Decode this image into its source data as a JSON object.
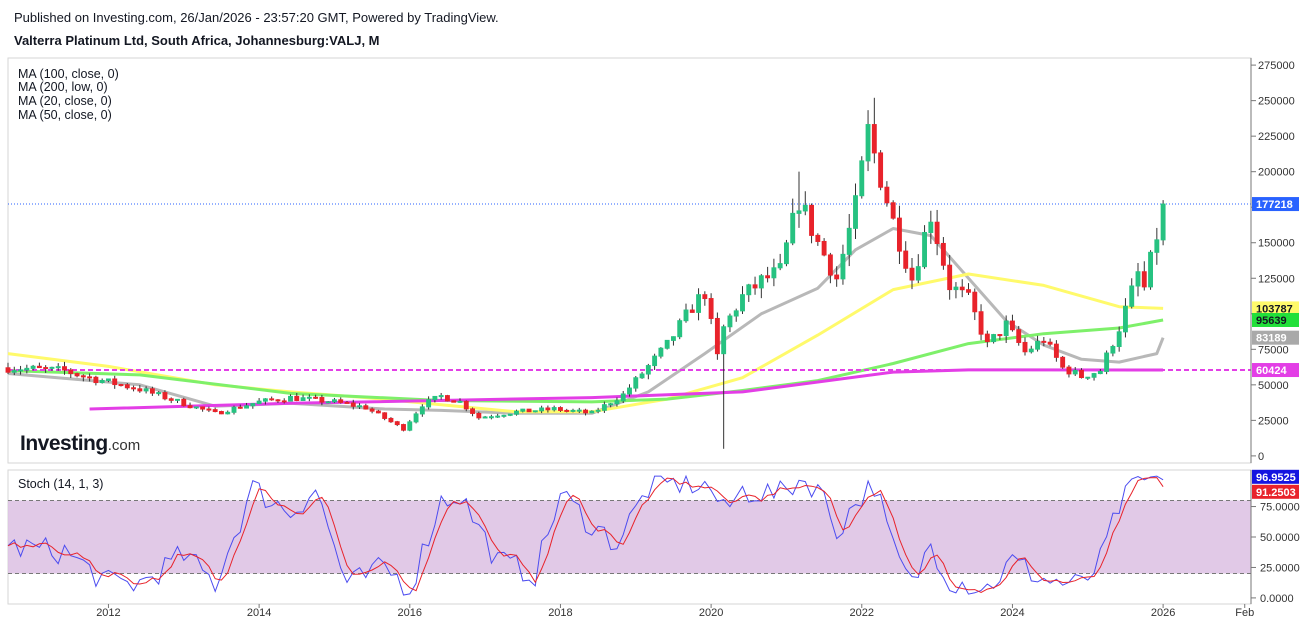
{
  "header": {
    "publish_line": "Published on Investing.com, 26/Jan/2026 - 23:57:20 GMT, Powered by TradingView.",
    "title": "Valterra Platinum Ltd, South Africa, Johannesburg:VALJ, M"
  },
  "legend": {
    "ma_100": "MA (100, close, 0)",
    "ma_200": "MA (200, low, 0)",
    "ma_20": "MA (20, close, 0)",
    "ma_50": "MA (50, close, 0)"
  },
  "logo": {
    "brand": "Investing",
    "suffix": ".com"
  },
  "stoch_label": "Stoch (14, 1, 3)",
  "colors": {
    "up": "#26c281",
    "down": "#e8232b",
    "ma20": "#b8b8b8",
    "ma50": "#fffa6b",
    "ma100": "#7ef06a",
    "ma200": "#e33ee6",
    "stoch_k": "#4c4cf0",
    "stoch_d": "#e8232b",
    "stoch_band": "#dcbfe3"
  },
  "chart_data": [
    {
      "type": "candlestick",
      "name": "price",
      "interval": "M",
      "y_ticks": [
        0,
        25000,
        50000,
        75000,
        100000,
        125000,
        150000,
        175000,
        200000,
        225000,
        250000,
        275000
      ],
      "ylim": [
        -5000,
        280000
      ],
      "x_ticks": [
        "2012",
        "2014",
        "2016",
        "2018",
        "2020",
        "2022",
        "2024",
        "2026",
        "Feb"
      ],
      "xlim": [
        "2010-09",
        "2027-03"
      ],
      "last_price": "177218",
      "price_labels": {
        "ma50": "103787",
        "ma100": "95639",
        "ma20": "83189",
        "ma200": "60424"
      },
      "anchors_close": [
        [
          "2010-09",
          62000
        ],
        [
          "2011-06",
          60000
        ],
        [
          "2011-09",
          56000
        ],
        [
          "2012-06",
          47000
        ],
        [
          "2013-03",
          34000
        ],
        [
          "2013-06",
          30000
        ],
        [
          "2014-01",
          38000
        ],
        [
          "2014-06",
          41000
        ],
        [
          "2015-01",
          38000
        ],
        [
          "2015-06",
          34000
        ],
        [
          "2015-12",
          19000
        ],
        [
          "2016-03",
          36000
        ],
        [
          "2016-06",
          42000
        ],
        [
          "2016-09",
          38000
        ],
        [
          "2016-12",
          27000
        ],
        [
          "2017-06",
          31000
        ],
        [
          "2017-12",
          33000
        ],
        [
          "2018-06",
          30000
        ],
        [
          "2018-11",
          43000
        ],
        [
          "2019-06",
          78000
        ],
        [
          "2019-10",
          105000
        ],
        [
          "2019-12",
          115000
        ],
        [
          "2020-02",
          70000
        ],
        [
          "2020-03",
          90000
        ],
        [
          "2020-06",
          112000
        ],
        [
          "2020-09",
          123000
        ],
        [
          "2020-12",
          130000
        ],
        [
          "2021-03",
          180000
        ],
        [
          "2021-04",
          170000
        ],
        [
          "2021-06",
          150000
        ],
        [
          "2021-09",
          125000
        ],
        [
          "2021-12",
          175000
        ],
        [
          "2022-02",
          228000
        ],
        [
          "2022-06",
          165000
        ],
        [
          "2022-09",
          125000
        ],
        [
          "2022-12",
          170000
        ],
        [
          "2023-03",
          120000
        ],
        [
          "2023-06",
          110000
        ],
        [
          "2023-09",
          78000
        ],
        [
          "2023-12",
          92000
        ],
        [
          "2024-03",
          73000
        ],
        [
          "2024-06",
          82000
        ],
        [
          "2024-09",
          62000
        ],
        [
          "2024-12",
          56000
        ],
        [
          "2025-03",
          60000
        ],
        [
          "2025-06",
          90000
        ],
        [
          "2025-09",
          128000
        ],
        [
          "2025-10",
          118000
        ],
        [
          "2025-12",
          155000
        ],
        [
          "2026-01",
          177218
        ]
      ],
      "ma_series": [
        {
          "key": "ma20",
          "points": [
            [
              "2010-09",
              58000
            ],
            [
              "2012-06",
              50000
            ],
            [
              "2013-06",
              35000
            ],
            [
              "2014-06",
              37000
            ],
            [
              "2015-09",
              33000
            ],
            [
              "2016-06",
              32000
            ],
            [
              "2017-06",
              30000
            ],
            [
              "2018-06",
              30000
            ],
            [
              "2019-03",
              45000
            ],
            [
              "2019-12",
              72000
            ],
            [
              "2020-09",
              100000
            ],
            [
              "2021-06",
              118000
            ],
            [
              "2021-12",
              145000
            ],
            [
              "2022-06",
              160000
            ],
            [
              "2022-12",
              155000
            ],
            [
              "2023-06",
              125000
            ],
            [
              "2023-12",
              95000
            ],
            [
              "2024-06",
              78000
            ],
            [
              "2024-12",
              68000
            ],
            [
              "2025-06",
              66000
            ],
            [
              "2025-12",
              72000
            ],
            [
              "2026-01",
              83189
            ]
          ]
        },
        {
          "key": "ma50",
          "points": [
            [
              "2010-09",
              72000
            ],
            [
              "2012-01",
              63000
            ],
            [
              "2013-06",
              50000
            ],
            [
              "2014-06",
              45000
            ],
            [
              "2015-06",
              41000
            ],
            [
              "2016-06",
              36000
            ],
            [
              "2017-06",
              31000
            ],
            [
              "2018-06",
              31000
            ],
            [
              "2019-06",
              40000
            ],
            [
              "2020-06",
              55000
            ],
            [
              "2021-06",
              85000
            ],
            [
              "2022-06",
              117000
            ],
            [
              "2023-06",
              128000
            ],
            [
              "2024-06",
              120000
            ],
            [
              "2025-06",
              105000
            ],
            [
              "2026-01",
              103787
            ]
          ]
        },
        {
          "key": "ma100",
          "points": [
            [
              "2010-09",
              60000
            ],
            [
              "2012-06",
              57000
            ],
            [
              "2014-06",
              44000
            ],
            [
              "2016-06",
              39000
            ],
            [
              "2018-06",
              38000
            ],
            [
              "2019-06",
              40000
            ],
            [
              "2020-06",
              46000
            ],
            [
              "2021-06",
              53000
            ],
            [
              "2022-06",
              65000
            ],
            [
              "2023-06",
              79000
            ],
            [
              "2024-06",
              86000
            ],
            [
              "2025-06",
              90000
            ],
            [
              "2026-01",
              95639
            ]
          ]
        },
        {
          "key": "ma200",
          "points": [
            [
              "2011-10",
              33000
            ],
            [
              "2014-06",
              37000
            ],
            [
              "2018-06",
              41000
            ],
            [
              "2020-06",
              45000
            ],
            [
              "2021-06",
              52000
            ],
            [
              "2022-06",
              59000
            ],
            [
              "2023-06",
              60500
            ],
            [
              "2026-01",
              60424
            ]
          ]
        }
      ],
      "support_line": 60424
    },
    {
      "type": "line",
      "name": "stoch",
      "series": [
        {
          "name": "%K",
          "key": "stoch_k"
        },
        {
          "name": "%D",
          "key": "stoch_d"
        }
      ],
      "y_ticks": [
        0,
        25,
        50,
        75
      ],
      "y_tick_labels": [
        "0.0000",
        "25.0000",
        "50.0000",
        "75.0000"
      ],
      "ylim": [
        -5,
        105
      ],
      "band": [
        20,
        80
      ],
      "last_k": "96.9525",
      "last_d": "91.2503",
      "anchors_k": [
        [
          "2010-09",
          42
        ],
        [
          "2011-06",
          38
        ],
        [
          "2012-01",
          12
        ],
        [
          "2012-06",
          12
        ],
        [
          "2013-01",
          35
        ],
        [
          "2013-06",
          12
        ],
        [
          "2013-12",
          90
        ],
        [
          "2014-06",
          70
        ],
        [
          "2014-10",
          90
        ],
        [
          "2015-03",
          10
        ],
        [
          "2015-09",
          25
        ],
        [
          "2016-01",
          8
        ],
        [
          "2016-06",
          80
        ],
        [
          "2016-09",
          85
        ],
        [
          "2017-03",
          30
        ],
        [
          "2017-09",
          20
        ],
        [
          "2018-01",
          85
        ],
        [
          "2018-06",
          60
        ],
        [
          "2018-10",
          45
        ],
        [
          "2019-03",
          90
        ],
        [
          "2019-09",
          95
        ],
        [
          "2020-01",
          90
        ],
        [
          "2020-03",
          70
        ],
        [
          "2020-06",
          88
        ],
        [
          "2020-12",
          85
        ],
        [
          "2021-03",
          97
        ],
        [
          "2021-06",
          92
        ],
        [
          "2021-09",
          55
        ],
        [
          "2021-12",
          78
        ],
        [
          "2022-03",
          94
        ],
        [
          "2022-06",
          40
        ],
        [
          "2022-09",
          10
        ],
        [
          "2022-12",
          45
        ],
        [
          "2023-03",
          15
        ],
        [
          "2023-09",
          8
        ],
        [
          "2024-01",
          30
        ],
        [
          "2024-06",
          15
        ],
        [
          "2024-12",
          10
        ],
        [
          "2025-03",
          30
        ],
        [
          "2025-06",
          75
        ],
        [
          "2025-09",
          95
        ],
        [
          "2026-01",
          96.95
        ]
      ]
    }
  ]
}
